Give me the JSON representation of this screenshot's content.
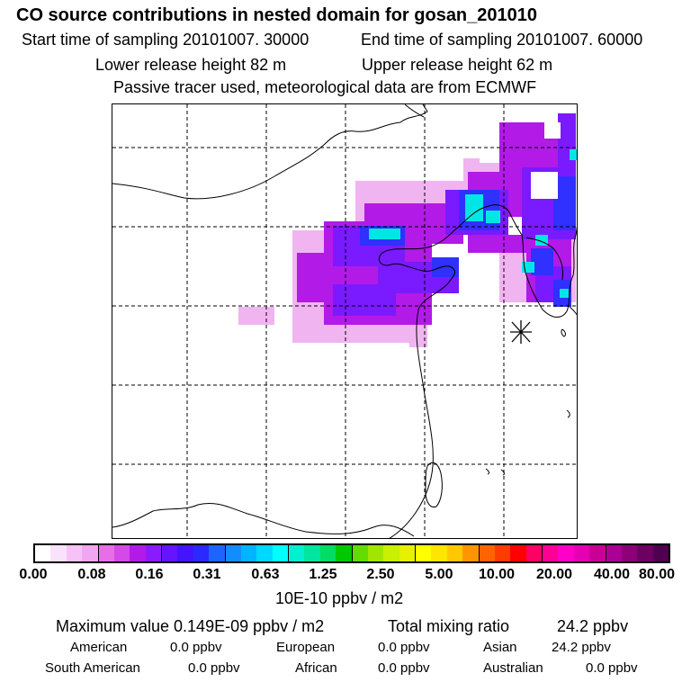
{
  "header": {
    "title": "CO  source contributions in nested domain for gosan_201010",
    "start_time": "Start time of sampling 20101007. 30000",
    "end_time": "End time of sampling 20101007. 60000",
    "lower_release": "Lower release height   82 m",
    "upper_release": "Upper release height   62 m",
    "tracer_note": "Passive tracer used, meteorological data are from ECMWF"
  },
  "colorbar": {
    "colors": [
      "#ffffff",
      "#fbe2fb",
      "#f7c2f7",
      "#f2a6f2",
      "#e86ee8",
      "#d44ae8",
      "#b21ae8",
      "#8c1aff",
      "#6414ff",
      "#4414ff",
      "#2a2aff",
      "#1e64ff",
      "#148cff",
      "#00b4ff",
      "#00d8ff",
      "#00ffff",
      "#00f0d0",
      "#00e6a0",
      "#00dc64",
      "#00c800",
      "#64dc00",
      "#a0e600",
      "#c8f000",
      "#e6f000",
      "#ffff00",
      "#ffe600",
      "#ffc800",
      "#ff9600",
      "#ff6400",
      "#ff3c00",
      "#ff0000",
      "#ff0064",
      "#ff0096",
      "#ff00c8",
      "#e600b4",
      "#c80096",
      "#aa0096",
      "#8c0078",
      "#6e0064",
      "#500050"
    ],
    "ticks": [
      "0.00",
      "0.08",
      "0.16",
      "0.31",
      "0.63",
      "1.25",
      "2.50",
      "5.00",
      "10.00",
      "20.00",
      "40.00",
      "80.00"
    ],
    "unit": "10E-10 ppbv / m2"
  },
  "footer": {
    "max_value": "Maximum value  0.149E-09 ppbv / m2",
    "total_mixing": "Total mixing ratio",
    "total_value": "24.2 ppbv",
    "regions": [
      {
        "label": "American",
        "value": "0.0 ppbv"
      },
      {
        "label": "European",
        "value": "0.0 ppbv"
      },
      {
        "label": "Asian",
        "value": "24.2 ppbv"
      },
      {
        "label": "South American",
        "value": "0.0 ppbv"
      },
      {
        "label": "African",
        "value": "0.0 ppbv"
      },
      {
        "label": "Australian",
        "value": "0.0 ppbv"
      }
    ]
  }
}
